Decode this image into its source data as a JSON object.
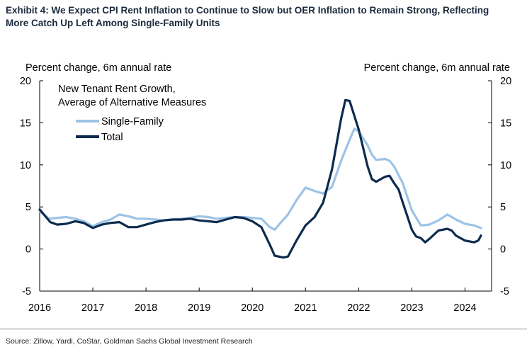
{
  "header": {
    "title_line1": "Exhibit 4: We Expect CPI Rent Inflation to Continue to Slow but OER Inflation to Remain Strong, Reflecting",
    "title_line2": "More Catch Up Left Among Single-Family Units"
  },
  "footer": {
    "source": "Source: Zillow, Yardi, CoStar, Goldman Sachs Global Investment Research"
  },
  "chart_data": {
    "type": "line",
    "ylabel_left": "Percent change, 6m annual rate",
    "ylabel_right": "Percent change, 6m annual rate",
    "legend_title": [
      "New Tenant Rent Growth,",
      "Average of Alternative Measures"
    ],
    "legend_position": "top-left",
    "ylim": [
      -5,
      20
    ],
    "yticks": [
      -5,
      0,
      5,
      10,
      15,
      20
    ],
    "xlim": [
      2016,
      2024.5
    ],
    "xticks": [
      2016,
      2017,
      2018,
      2019,
      2020,
      2021,
      2022,
      2023,
      2024
    ],
    "grid": false,
    "series": [
      {
        "name": "Single-Family",
        "color": "#9dc3e6",
        "points": [
          [
            2016.0,
            4.5
          ],
          [
            2016.17,
            3.6
          ],
          [
            2016.33,
            3.7
          ],
          [
            2016.5,
            3.8
          ],
          [
            2016.67,
            3.6
          ],
          [
            2016.83,
            3.3
          ],
          [
            2017.0,
            2.7
          ],
          [
            2017.17,
            3.2
          ],
          [
            2017.33,
            3.5
          ],
          [
            2017.5,
            4.1
          ],
          [
            2017.67,
            3.9
          ],
          [
            2017.83,
            3.6
          ],
          [
            2018.0,
            3.6
          ],
          [
            2018.17,
            3.5
          ],
          [
            2018.33,
            3.4
          ],
          [
            2018.5,
            3.5
          ],
          [
            2018.67,
            3.6
          ],
          [
            2018.83,
            3.7
          ],
          [
            2019.0,
            3.9
          ],
          [
            2019.17,
            3.8
          ],
          [
            2019.33,
            3.6
          ],
          [
            2019.5,
            3.7
          ],
          [
            2019.67,
            3.8
          ],
          [
            2019.83,
            3.8
          ],
          [
            2020.0,
            3.7
          ],
          [
            2020.17,
            3.6
          ],
          [
            2020.33,
            2.6
          ],
          [
            2020.42,
            2.3
          ],
          [
            2020.5,
            2.9
          ],
          [
            2020.67,
            4.1
          ],
          [
            2020.83,
            5.8
          ],
          [
            2021.0,
            7.3
          ],
          [
            2021.17,
            6.9
          ],
          [
            2021.33,
            6.6
          ],
          [
            2021.5,
            7.4
          ],
          [
            2021.67,
            10.5
          ],
          [
            2021.83,
            13.0
          ],
          [
            2021.92,
            14.3
          ],
          [
            2022.0,
            14.0
          ],
          [
            2022.17,
            12.3
          ],
          [
            2022.25,
            11.2
          ],
          [
            2022.33,
            10.6
          ],
          [
            2022.5,
            10.7
          ],
          [
            2022.58,
            10.5
          ],
          [
            2022.67,
            9.8
          ],
          [
            2022.83,
            7.8
          ],
          [
            2023.0,
            4.6
          ],
          [
            2023.17,
            2.8
          ],
          [
            2023.33,
            2.9
          ],
          [
            2023.5,
            3.4
          ],
          [
            2023.67,
            4.1
          ],
          [
            2023.83,
            3.5
          ],
          [
            2024.0,
            3.0
          ],
          [
            2024.17,
            2.8
          ],
          [
            2024.3,
            2.5
          ]
        ]
      },
      {
        "name": "Total",
        "color": "#0d2b4f",
        "points": [
          [
            2016.0,
            4.7
          ],
          [
            2016.08,
            4.1
          ],
          [
            2016.2,
            3.2
          ],
          [
            2016.33,
            2.9
          ],
          [
            2016.5,
            3.0
          ],
          [
            2016.67,
            3.3
          ],
          [
            2016.83,
            3.1
          ],
          [
            2017.0,
            2.5
          ],
          [
            2017.17,
            2.9
          ],
          [
            2017.33,
            3.1
          ],
          [
            2017.5,
            3.2
          ],
          [
            2017.67,
            2.6
          ],
          [
            2017.83,
            2.6
          ],
          [
            2018.0,
            2.9
          ],
          [
            2018.17,
            3.2
          ],
          [
            2018.33,
            3.4
          ],
          [
            2018.5,
            3.5
          ],
          [
            2018.67,
            3.5
          ],
          [
            2018.83,
            3.6
          ],
          [
            2019.0,
            3.4
          ],
          [
            2019.17,
            3.3
          ],
          [
            2019.33,
            3.2
          ],
          [
            2019.5,
            3.5
          ],
          [
            2019.67,
            3.8
          ],
          [
            2019.83,
            3.7
          ],
          [
            2020.0,
            3.3
          ],
          [
            2020.17,
            2.6
          ],
          [
            2020.33,
            0.5
          ],
          [
            2020.42,
            -0.8
          ],
          [
            2020.58,
            -1.0
          ],
          [
            2020.67,
            -0.9
          ],
          [
            2020.83,
            1.0
          ],
          [
            2021.0,
            2.8
          ],
          [
            2021.17,
            3.8
          ],
          [
            2021.33,
            5.5
          ],
          [
            2021.5,
            9.5
          ],
          [
            2021.67,
            15.5
          ],
          [
            2021.75,
            17.7
          ],
          [
            2021.83,
            17.6
          ],
          [
            2022.0,
            14.2
          ],
          [
            2022.17,
            9.8
          ],
          [
            2022.25,
            8.3
          ],
          [
            2022.33,
            8.0
          ],
          [
            2022.5,
            8.6
          ],
          [
            2022.58,
            8.7
          ],
          [
            2022.67,
            7.8
          ],
          [
            2022.75,
            7.1
          ],
          [
            2022.83,
            5.5
          ],
          [
            2023.0,
            2.3
          ],
          [
            2023.08,
            1.5
          ],
          [
            2023.17,
            1.3
          ],
          [
            2023.25,
            0.8
          ],
          [
            2023.33,
            1.2
          ],
          [
            2023.5,
            2.2
          ],
          [
            2023.67,
            2.4
          ],
          [
            2023.75,
            2.2
          ],
          [
            2023.83,
            1.6
          ],
          [
            2024.0,
            1.0
          ],
          [
            2024.17,
            0.8
          ],
          [
            2024.25,
            1.0
          ],
          [
            2024.3,
            1.6
          ]
        ]
      }
    ]
  }
}
